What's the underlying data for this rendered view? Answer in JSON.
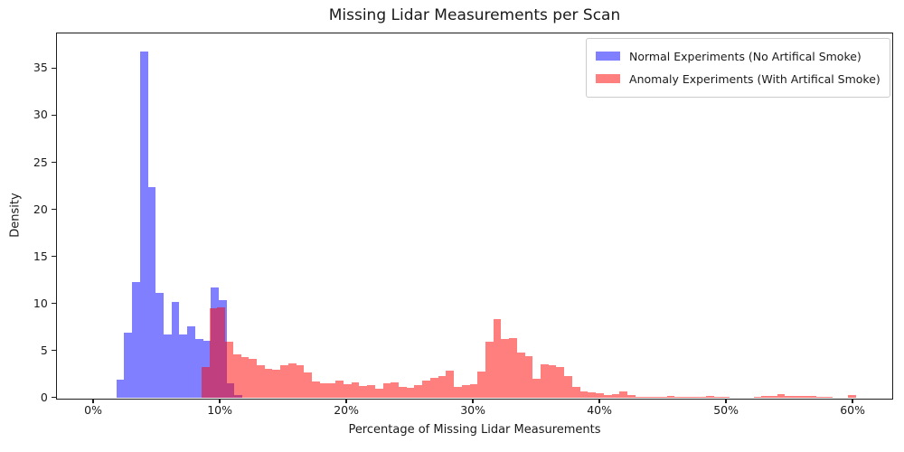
{
  "chart_data": {
    "type": "bar",
    "subtype": "overlapping_density_histogram",
    "title": "Missing Lidar Measurements per Scan",
    "xlabel": "Percentage of Missing Lidar Measurements",
    "ylabel": "Density",
    "x_tick_labels": [
      "0%",
      "10%",
      "20%",
      "30%",
      "40%",
      "50%",
      "60%"
    ],
    "x_tick_values": [
      0,
      10,
      20,
      30,
      40,
      50,
      60
    ],
    "y_tick_values": [
      0,
      5,
      10,
      15,
      20,
      25,
      30,
      35
    ],
    "xlim_pct": [
      -2.9,
      63.1
    ],
    "ylim": [
      0,
      38.7
    ],
    "grid": false,
    "legend_position": "upper right",
    "bin_width_pct": 0.623,
    "series": [
      {
        "name": "Normal Experiments (No Artifical Smoke)",
        "color": "rgba(0,0,255,0.5)",
        "bin_start_pct": 1.81,
        "heights": [
          1.9,
          6.9,
          12.3,
          36.8,
          22.4,
          11.1,
          6.7,
          10.2,
          6.7,
          7.6,
          6.2,
          6.0,
          11.7,
          10.4,
          1.5,
          0.3
        ]
      },
      {
        "name": "Anomaly Experiments (With Artifical Smoke)",
        "color": "rgba(255,0,0,0.5)",
        "bin_start_pct": 8.55,
        "heights": [
          3.2,
          9.5,
          9.6,
          5.9,
          4.6,
          4.3,
          4.1,
          3.4,
          3.1,
          3.0,
          3.4,
          3.6,
          3.4,
          2.7,
          1.7,
          1.5,
          1.5,
          1.8,
          1.4,
          1.6,
          1.2,
          1.3,
          0.9,
          1.5,
          1.6,
          1.1,
          1.0,
          1.3,
          1.8,
          2.1,
          2.3,
          2.9,
          1.1,
          1.3,
          1.4,
          2.8,
          5.9,
          8.3,
          6.2,
          6.3,
          4.8,
          4.4,
          2.0,
          3.5,
          3.4,
          3.2,
          2.3,
          1.1,
          0.7,
          0.6,
          0.5,
          0.3,
          0.4,
          0.7,
          0.3,
          0.1,
          0.1,
          0.05,
          0.05,
          0.2,
          0.05,
          0.05,
          0.05,
          0.05,
          0.15,
          0.05,
          0.05,
          0,
          0,
          0,
          0.05,
          0.15,
          0.15,
          0.4,
          0.2,
          0.15,
          0.15,
          0.2,
          0.1,
          0.05,
          0,
          0,
          0.25
        ]
      }
    ]
  }
}
